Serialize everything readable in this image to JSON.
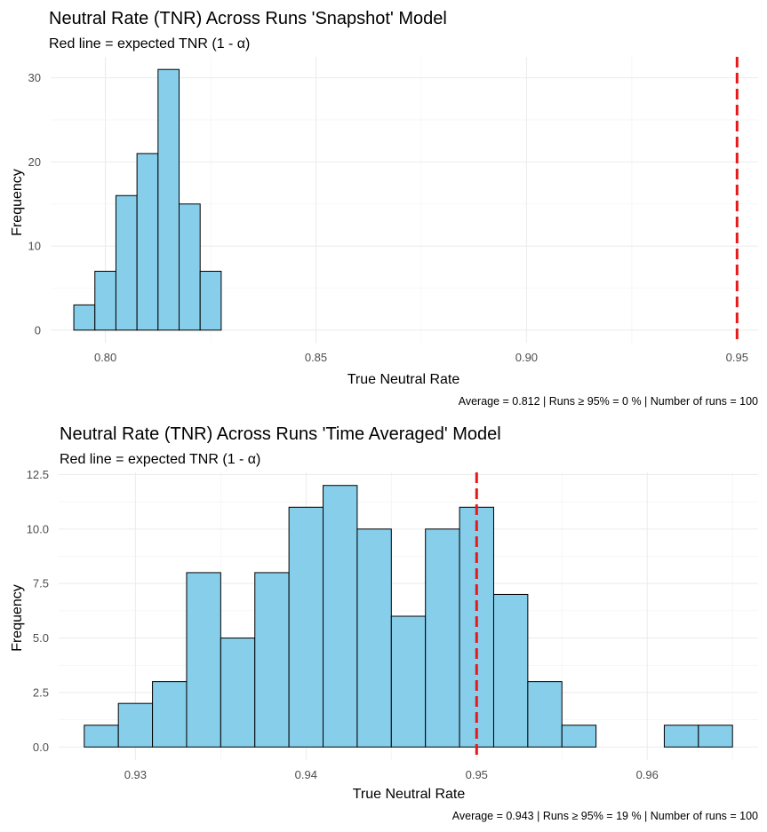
{
  "chart_data": [
    {
      "type": "bar",
      "title": "Neutral Rate (TNR) Across Runs 'Snapshot' Model",
      "subtitle": "Red line = expected TNR (1 - α)",
      "xlabel": "True Neutral Rate",
      "ylabel": "Frequency",
      "caption": "Average = 0.812 | Runs ≥ 95% = 0 % | Number of runs = 100",
      "xlim": [
        0.787,
        0.955
      ],
      "ylim": [
        -1.5,
        32.5
      ],
      "bin_width": 0.005,
      "x_ticks": [
        0.8,
        0.85,
        0.9,
        0.95
      ],
      "x_tick_labels": [
        "0.80",
        "0.85",
        "0.90",
        "0.95"
      ],
      "y_ticks": [
        0,
        10,
        20,
        30
      ],
      "y_tick_labels": [
        "0",
        "10",
        "20",
        "30"
      ],
      "bin_starts": [
        0.7925,
        0.7975,
        0.8025,
        0.8075,
        0.8125,
        0.8175,
        0.8225,
        0.8275,
        0.8325,
        0.8375,
        0.8425,
        0.8475,
        0.8525,
        0.8575,
        0.8625,
        0.8675,
        0.8725,
        0.8775,
        0.8825,
        0.8875,
        0.8925,
        0.8975,
        0.9025,
        0.9075,
        0.9125,
        0.9175,
        0.9225,
        0.9275,
        0.9325,
        0.9375,
        0.9425,
        0.9475
      ],
      "values": [
        3,
        7,
        16,
        21,
        31,
        15,
        7,
        0,
        0,
        0,
        0,
        0,
        0,
        0,
        0,
        0,
        0,
        0,
        0,
        0,
        0,
        0,
        0,
        0,
        0,
        0,
        0,
        0,
        0,
        0,
        0,
        0
      ],
      "reference_line": {
        "x": 0.95,
        "color": "#e31a1c",
        "style": "dashed"
      },
      "bar_fill": "#87ceeb",
      "bar_outline": "#000000",
      "grid": true,
      "legend": "none"
    },
    {
      "type": "bar",
      "title": "Neutral Rate (TNR) Across Runs 'Time Averaged' Model",
      "subtitle": "Red line = expected TNR (1 - α)",
      "xlabel": "True Neutral Rate",
      "ylabel": "Frequency",
      "caption": "Average = 0.943 | Runs ≥ 95% = 19 % | Number of runs = 100",
      "xlim": [
        0.9255,
        0.9665
      ],
      "ylim": [
        -0.6,
        12.6
      ],
      "bin_width": 0.002,
      "x_ticks": [
        0.93,
        0.94,
        0.95,
        0.96
      ],
      "x_tick_labels": [
        "0.93",
        "0.94",
        "0.95",
        "0.96"
      ],
      "y_ticks": [
        0,
        2.5,
        5,
        7.5,
        10,
        12.5
      ],
      "y_tick_labels": [
        "0.0",
        "2.5",
        "5.0",
        "7.5",
        "10.0",
        "12.5"
      ],
      "bin_starts": [
        0.927,
        0.929,
        0.931,
        0.933,
        0.935,
        0.937,
        0.939,
        0.941,
        0.943,
        0.945,
        0.947,
        0.949,
        0.951,
        0.953,
        0.955,
        0.957,
        0.959,
        0.961,
        0.963
      ],
      "values": [
        1,
        2,
        3,
        8,
        5,
        8,
        11,
        12,
        10,
        6,
        10,
        11,
        7,
        3,
        1,
        0,
        0,
        1,
        1
      ],
      "reference_line": {
        "x": 0.95,
        "color": "#e31a1c",
        "style": "dashed"
      },
      "bar_fill": "#87ceeb",
      "bar_outline": "#000000",
      "grid": true,
      "legend": "none"
    }
  ]
}
